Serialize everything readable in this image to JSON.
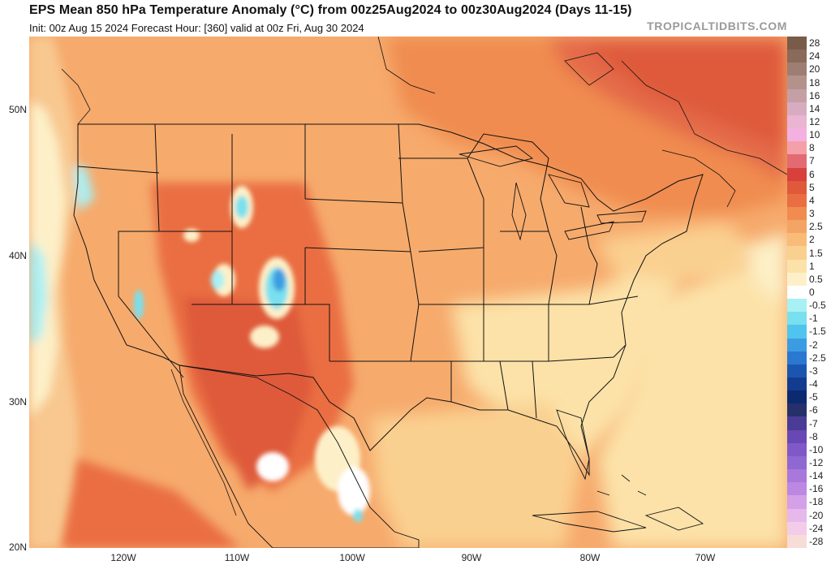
{
  "header": {
    "title": "EPS Mean 850 hPa Temperature Anomaly (°C) from 00z25Aug2024 to 00z30Aug2024 (Days 11-15)",
    "subtitle": "Init: 00z Aug 15 2024   Forecast Hour: [360]   valid at 00z Fri, Aug 30 2024",
    "brand": "TROPICALTIDBITS.COM"
  },
  "axes": {
    "lat_labels": [
      "50N",
      "40N",
      "30N",
      "20N"
    ],
    "lon_labels": [
      "120W",
      "110W",
      "100W",
      "90W",
      "80W",
      "70W"
    ]
  },
  "colorbar": {
    "labels": [
      "28",
      "24",
      "20",
      "18",
      "16",
      "14",
      "12",
      "10",
      "8",
      "7",
      "6",
      "5",
      "4",
      "3",
      "2.5",
      "2",
      "1.5",
      "1",
      "0.5",
      "0",
      "-0.5",
      "-1",
      "-1.5",
      "-2",
      "-2.5",
      "-3",
      "-4",
      "-5",
      "-6",
      "-7",
      "-8",
      "-10",
      "-12",
      "-14",
      "-16",
      "-18",
      "-20",
      "-24",
      "-28"
    ],
    "colors": [
      "#7a5a48",
      "#8a6a5a",
      "#9e7e72",
      "#b4928c",
      "#c4a0a6",
      "#d8acc0",
      "#eab4d2",
      "#f4b0e0",
      "#f4a0a8",
      "#e46a72",
      "#d8403c",
      "#de5a3a",
      "#ea6e42",
      "#f08c50",
      "#f4a464",
      "#f8bc78",
      "#fad090",
      "#fce2a8",
      "#fdf0c8",
      "#ffffff",
      "#a8f0f4",
      "#78e0ee",
      "#50c4ee",
      "#3c9ce2",
      "#2a78d0",
      "#1a56b0",
      "#123c90",
      "#0c2a70",
      "#26306a",
      "#4a3c96",
      "#6848b4",
      "#8058c8",
      "#9068d2",
      "#a878dc",
      "#bc88e2",
      "#d4a0e8",
      "#e6b8ec",
      "#f2cce8",
      "#f8dcd8"
    ]
  },
  "regions": [
    "pacific-ocean",
    "canada",
    "atlantic-ocean",
    "gulf-of-mexico",
    "mexico",
    "united-states"
  ]
}
